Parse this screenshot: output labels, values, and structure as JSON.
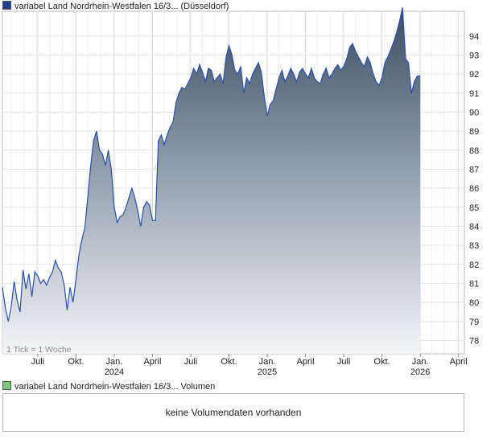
{
  "legend": {
    "price_label": "variabel Land Nordrhein-Westfalen 16/3... (Düsseldorf)",
    "price_color": "#1f3f8f",
    "volume_label": "variabel Land Nordrhein-Westfalen 16/3... Volumen",
    "volume_color": "#7ec87e"
  },
  "watermark": "Ak",
  "tick_note": "1 Tick = 1 Woche",
  "volume_message": "keine Volumendaten vorhanden",
  "chart_data": {
    "type": "area",
    "ylim": [
      77.3,
      95.3
    ],
    "grid": true,
    "y_ticks": [
      78,
      79,
      80,
      81,
      82,
      83,
      84,
      85,
      86,
      87,
      88,
      89,
      90,
      91,
      92,
      93,
      94
    ],
    "x_ticks": [
      {
        "label": "Juli",
        "year": "",
        "x": 10
      },
      {
        "label": "Okt.",
        "year": "",
        "x": 23
      },
      {
        "label": "Jan.",
        "year": "2024",
        "x": 36
      },
      {
        "label": "April",
        "year": "",
        "x": 49
      },
      {
        "label": "Juli",
        "year": "",
        "x": 62
      },
      {
        "label": "Okt.",
        "year": "",
        "x": 75
      },
      {
        "label": "Jan.",
        "year": "2025",
        "x": 88
      },
      {
        "label": "April",
        "year": "",
        "x": 101
      },
      {
        "label": "Juli",
        "year": "",
        "x": 114
      },
      {
        "label": "Okt.",
        "year": "",
        "x": 127
      },
      {
        "label": "Jan.",
        "year": "2026",
        "x": 140
      },
      {
        "label": "April",
        "year": "",
        "x": 153
      }
    ],
    "series": [
      {
        "color": "#2a4fa8",
        "values": [
          [
            -2,
            80.8
          ],
          [
            -1,
            79.7
          ],
          [
            0,
            79.0
          ],
          [
            1,
            79.8
          ],
          [
            2,
            81.1
          ],
          [
            3,
            80.1
          ],
          [
            4,
            79.5
          ],
          [
            5,
            81.7
          ],
          [
            6,
            80.7
          ],
          [
            7,
            81.5
          ],
          [
            8,
            80.3
          ],
          [
            9,
            81.6
          ],
          [
            10,
            81.4
          ],
          [
            11,
            81.0
          ],
          [
            12,
            81.2
          ],
          [
            13,
            80.9
          ],
          [
            14,
            81.3
          ],
          [
            15,
            81.6
          ],
          [
            16,
            82.2
          ],
          [
            17,
            81.8
          ],
          [
            18,
            81.6
          ],
          [
            19,
            80.9
          ],
          [
            20,
            79.6
          ],
          [
            21,
            80.8
          ],
          [
            22,
            80.0
          ],
          [
            23,
            81.2
          ],
          [
            24,
            82.5
          ],
          [
            25,
            83.3
          ],
          [
            26,
            83.9
          ],
          [
            27,
            85.5
          ],
          [
            28,
            87.2
          ],
          [
            29,
            88.5
          ],
          [
            30,
            89.0
          ],
          [
            31,
            88.0
          ],
          [
            32,
            87.8
          ],
          [
            33,
            87.2
          ],
          [
            34,
            88.0
          ],
          [
            35,
            87.0
          ],
          [
            36,
            85.0
          ],
          [
            37,
            84.2
          ],
          [
            38,
            84.5
          ],
          [
            39,
            84.6
          ],
          [
            40,
            85.0
          ],
          [
            41,
            85.5
          ],
          [
            42,
            86.0
          ],
          [
            43,
            85.5
          ],
          [
            44,
            84.8
          ],
          [
            45,
            84.0
          ],
          [
            46,
            85.0
          ],
          [
            47,
            85.3
          ],
          [
            48,
            85.1
          ],
          [
            49,
            84.3
          ],
          [
            50,
            84.3
          ],
          [
            51,
            88.5
          ],
          [
            52,
            88.8
          ],
          [
            53,
            88.3
          ],
          [
            54,
            88.8
          ],
          [
            55,
            89.2
          ],
          [
            56,
            89.5
          ],
          [
            57,
            90.5
          ],
          [
            58,
            91.0
          ],
          [
            59,
            91.3
          ],
          [
            60,
            91.2
          ],
          [
            61,
            91.5
          ],
          [
            62,
            91.8
          ],
          [
            63,
            92.3
          ],
          [
            64,
            92.0
          ],
          [
            65,
            92.5
          ],
          [
            66,
            92.1
          ],
          [
            67,
            91.6
          ],
          [
            68,
            92.3
          ],
          [
            69,
            92.2
          ],
          [
            70,
            91.6
          ],
          [
            71,
            91.8
          ],
          [
            72,
            92.0
          ],
          [
            73,
            91.5
          ],
          [
            74,
            92.9
          ],
          [
            75,
            93.5
          ],
          [
            76,
            93.0
          ],
          [
            77,
            92.2
          ],
          [
            78,
            92.0
          ],
          [
            79,
            92.4
          ],
          [
            80,
            91.0
          ],
          [
            81,
            91.8
          ],
          [
            82,
            91.5
          ],
          [
            83,
            92.0
          ],
          [
            84,
            92.3
          ],
          [
            85,
            92.6
          ],
          [
            86,
            92.1
          ],
          [
            87,
            90.8
          ],
          [
            88,
            89.8
          ],
          [
            89,
            90.4
          ],
          [
            90,
            90.6
          ],
          [
            91,
            91.2
          ],
          [
            92,
            91.8
          ],
          [
            93,
            92.2
          ],
          [
            94,
            91.6
          ],
          [
            95,
            91.9
          ],
          [
            96,
            92.3
          ],
          [
            97,
            92.0
          ],
          [
            98,
            91.6
          ],
          [
            99,
            92.1
          ],
          [
            100,
            92.3
          ],
          [
            101,
            92.0
          ],
          [
            102,
            91.8
          ],
          [
            103,
            92.3
          ],
          [
            104,
            91.8
          ],
          [
            105,
            91.6
          ],
          [
            106,
            91.5
          ],
          [
            107,
            92.0
          ],
          [
            108,
            92.3
          ],
          [
            109,
            91.8
          ],
          [
            110,
            92.0
          ],
          [
            111,
            92.3
          ],
          [
            112,
            92.5
          ],
          [
            113,
            92.2
          ],
          [
            114,
            92.4
          ],
          [
            115,
            92.8
          ],
          [
            116,
            93.4
          ],
          [
            117,
            93.6
          ],
          [
            118,
            93.2
          ],
          [
            119,
            92.9
          ],
          [
            120,
            92.6
          ],
          [
            121,
            92.4
          ],
          [
            122,
            92.9
          ],
          [
            123,
            92.6
          ],
          [
            124,
            92.0
          ],
          [
            125,
            91.6
          ],
          [
            126,
            91.4
          ],
          [
            127,
            91.8
          ],
          [
            128,
            92.6
          ],
          [
            129,
            92.9
          ],
          [
            130,
            93.3
          ],
          [
            131,
            93.7
          ],
          [
            132,
            94.2
          ],
          [
            133,
            94.8
          ],
          [
            134,
            95.5
          ],
          [
            135,
            92.8
          ],
          [
            136,
            92.6
          ],
          [
            137,
            91.0
          ],
          [
            138,
            91.6
          ],
          [
            139,
            91.9
          ],
          [
            140,
            91.9
          ]
        ]
      }
    ]
  }
}
